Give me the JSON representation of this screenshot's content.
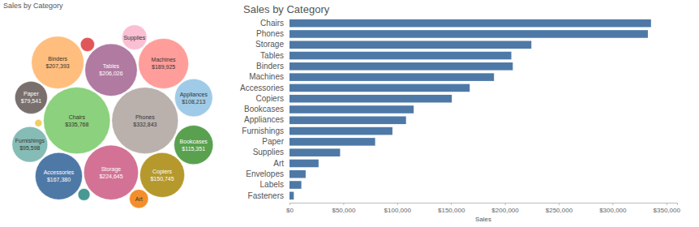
{
  "chart_data": [
    {
      "type": "bubble",
      "title": "Sales by Category",
      "categories": [
        "Chairs",
        "Phones",
        "Storage",
        "Tables",
        "Binders",
        "Machines",
        "Accessories",
        "Copiers",
        "Bookcases",
        "Appliances",
        "Furnishings",
        "Paper",
        "Supplies",
        "Art",
        null,
        null,
        null
      ],
      "values": [
        335768,
        332843,
        224645,
        206026,
        207393,
        189925,
        167380,
        150745,
        115351,
        108213,
        95598,
        79541,
        47000,
        27000,
        15000,
        11000,
        4000
      ],
      "value_labels": [
        "$335,768",
        "$332,843",
        "$224,645",
        "$206,026",
        "$207,393",
        "$189,925",
        "$167,380",
        "$150,745",
        "$115,351",
        "$108,213",
        "$95,598",
        "$79,541",
        null,
        null,
        null,
        null,
        null
      ],
      "colors": [
        "#8cd17d",
        "#bab0ac",
        "#d37295",
        "#b07aa1",
        "#ffbe7d",
        "#ff9d9a",
        "#4e79a7",
        "#b6992d",
        "#59a14f",
        "#a0cbe8",
        "#86bcb6",
        "#79706e",
        "#fabfd2",
        "#f28e2b",
        "#e15759",
        "#499894",
        "#f1ce63"
      ],
      "data_labels": true
    },
    {
      "type": "bar",
      "title": "Sales by Category",
      "orientation": "horizontal",
      "categories": [
        "Chairs",
        "Phones",
        "Storage",
        "Tables",
        "Binders",
        "Machines",
        "Accessories",
        "Copiers",
        "Bookcases",
        "Appliances",
        "Furnishings",
        "Paper",
        "Supplies",
        "Art",
        "Envelopes",
        "Labels",
        "Fasteners"
      ],
      "values": [
        335768,
        332843,
        224645,
        206026,
        207393,
        189925,
        167380,
        150745,
        115351,
        108213,
        95598,
        79541,
        47000,
        27000,
        15000,
        11000,
        4000
      ],
      "color": "#4e79a7",
      "xlabel": "Sales",
      "xlim": [
        0,
        360000
      ],
      "xticks": [
        {
          "value": 0,
          "label": "$0"
        },
        {
          "value": 50000,
          "label": "$50,000"
        },
        {
          "value": 100000,
          "label": "$100,000"
        },
        {
          "value": 150000,
          "label": "$150,000"
        },
        {
          "value": 200000,
          "label": "$200,000"
        },
        {
          "value": 250000,
          "label": "$250,000"
        },
        {
          "value": 300000,
          "label": "$300,000"
        },
        {
          "value": 350000,
          "label": "$350,000"
        }
      ],
      "grid": false
    }
  ]
}
